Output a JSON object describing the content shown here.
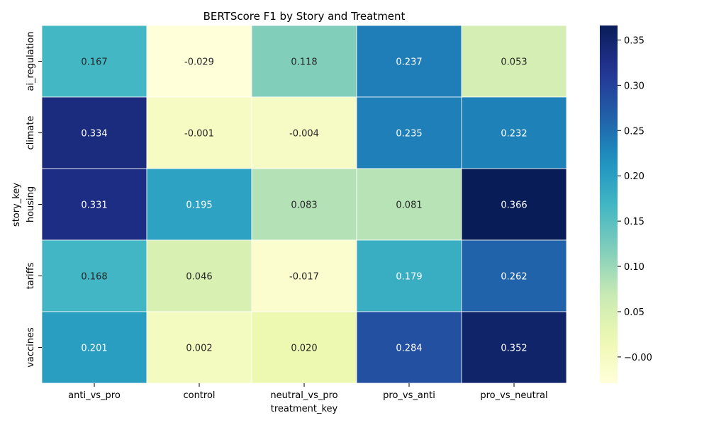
{
  "chart_data": {
    "type": "heatmap",
    "title": "BERTScore F1 by Story and Treatment",
    "xlabel": "treatment_key",
    "ylabel": "story_key",
    "x_categories": [
      "anti_vs_pro",
      "control",
      "neutral_vs_pro",
      "pro_vs_anti",
      "pro_vs_neutral"
    ],
    "y_categories": [
      "ai_regulation",
      "climate",
      "housing",
      "tariffs",
      "vaccines"
    ],
    "values": [
      [
        0.167,
        -0.029,
        0.118,
        0.237,
        0.053
      ],
      [
        0.334,
        -0.001,
        -0.004,
        0.235,
        0.232
      ],
      [
        0.331,
        0.195,
        0.083,
        0.081,
        0.366
      ],
      [
        0.168,
        0.046,
        -0.017,
        0.179,
        0.262
      ],
      [
        0.201,
        0.002,
        0.02,
        0.284,
        0.352
      ]
    ],
    "cell_labels": [
      [
        "0.167",
        "-0.029",
        "0.118",
        "0.237",
        "0.053"
      ],
      [
        "0.334",
        "-0.001",
        "-0.004",
        "0.235",
        "0.232"
      ],
      [
        "0.331",
        "0.195",
        "0.083",
        "0.081",
        "0.366"
      ],
      [
        "0.168",
        "0.046",
        "-0.017",
        "0.179",
        "0.262"
      ],
      [
        "0.201",
        "0.002",
        "0.020",
        "0.284",
        "0.352"
      ]
    ],
    "colormap": "YlGnBu",
    "vmin": -0.029,
    "vmax": 0.366,
    "colorbar_ticks": [
      -0.0,
      0.05,
      0.1,
      0.15,
      0.2,
      0.25,
      0.3,
      0.35
    ],
    "colorbar_tick_labels": [
      "−0.00",
      "0.05",
      "0.10",
      "0.15",
      "0.20",
      "0.25",
      "0.30",
      "0.35"
    ],
    "legend": "colorbar-right",
    "grid": false
  }
}
